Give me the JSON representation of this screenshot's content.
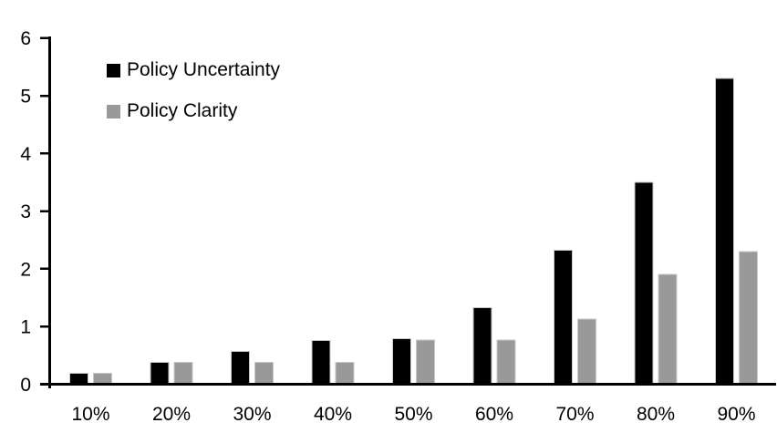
{
  "chart_data": {
    "type": "bar",
    "title": "",
    "xlabel": "",
    "ylabel": "",
    "categories": [
      "10%",
      "20%",
      "30%",
      "40%",
      "50%",
      "60%",
      "70%",
      "80%",
      "90%"
    ],
    "series": [
      {
        "name": "Policy Uncertainty",
        "color": "#000000",
        "border_color": "#c9c9c9",
        "values": [
          0.19,
          0.38,
          0.57,
          0.76,
          0.79,
          1.33,
          2.32,
          3.5,
          5.3
        ]
      },
      {
        "name": "Policy Clarity",
        "color": "#999999",
        "border_color": "#c9c9c9",
        "values": [
          0.19,
          0.38,
          0.38,
          0.38,
          0.77,
          0.77,
          1.13,
          1.9,
          2.3
        ]
      }
    ],
    "ylim": [
      0,
      6
    ],
    "yticks": [
      "0",
      "1",
      "2",
      "3",
      "4",
      "5",
      "6"
    ],
    "grid": false,
    "legend_position": "inside-top-left",
    "axis_color": "#000000",
    "background": "#ffffff"
  }
}
